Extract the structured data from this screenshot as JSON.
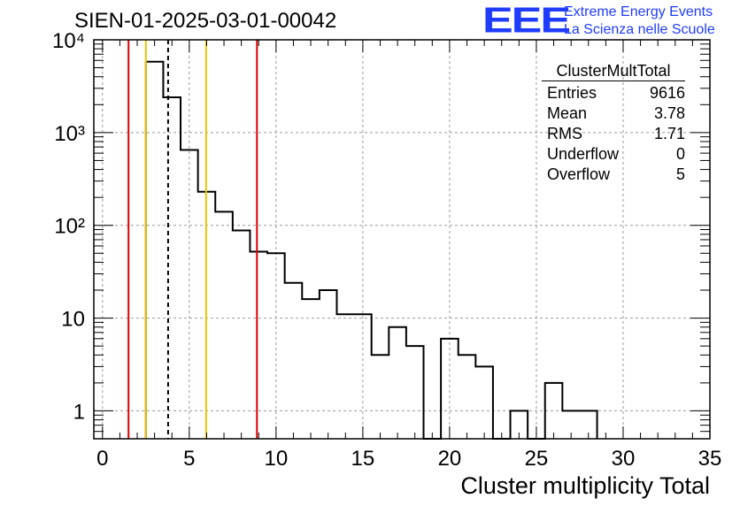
{
  "title": "SIEN-01-2025-03-01-00042",
  "logo": {
    "mark": "EEE",
    "line1": "Extreme Energy Events",
    "line2": "La Scienza nelle Scuole",
    "color": "#1f3cff"
  },
  "stats": {
    "name": "ClusterMultTotal",
    "rows": [
      {
        "label": "Entries",
        "value": "9616"
      },
      {
        "label": "Mean",
        "value": "3.78"
      },
      {
        "label": "RMS",
        "value": "1.71"
      },
      {
        "label": "Underflow",
        "value": "0"
      },
      {
        "label": "Overflow",
        "value": "5"
      }
    ]
  },
  "chart_data": {
    "type": "histogram",
    "title": "SIEN-01-2025-03-01-00042",
    "xlabel": "Cluster multiplicity Total",
    "ylabel": "",
    "xlim": [
      -0.5,
      35
    ],
    "ylim": [
      0.5,
      10000
    ],
    "yscale": "log",
    "grid": true,
    "xticks": [
      0,
      5,
      10,
      15,
      20,
      25,
      30,
      35
    ],
    "yticks": [
      {
        "value": 1,
        "label": "1"
      },
      {
        "value": 10,
        "label": "10"
      },
      {
        "value": 100,
        "label": "10²"
      },
      {
        "value": 1000,
        "label": "10³"
      },
      {
        "value": 10000,
        "label": "10⁴"
      }
    ],
    "bin_width": 1,
    "bins": [
      {
        "lo": 2.5,
        "count": 5800
      },
      {
        "lo": 3.5,
        "count": 2400
      },
      {
        "lo": 4.5,
        "count": 650
      },
      {
        "lo": 5.5,
        "count": 230
      },
      {
        "lo": 6.5,
        "count": 140
      },
      {
        "lo": 7.5,
        "count": 88
      },
      {
        "lo": 8.5,
        "count": 52
      },
      {
        "lo": 9.5,
        "count": 50
      },
      {
        "lo": 10.5,
        "count": 24
      },
      {
        "lo": 11.5,
        "count": 16
      },
      {
        "lo": 12.5,
        "count": 20
      },
      {
        "lo": 13.5,
        "count": 11
      },
      {
        "lo": 14.5,
        "count": 11
      },
      {
        "lo": 15.5,
        "count": 4
      },
      {
        "lo": 16.5,
        "count": 8
      },
      {
        "lo": 17.5,
        "count": 5
      },
      {
        "lo": 18.5,
        "count": 0
      },
      {
        "lo": 19.5,
        "count": 6
      },
      {
        "lo": 20.5,
        "count": 4
      },
      {
        "lo": 21.5,
        "count": 3
      },
      {
        "lo": 22.5,
        "count": 0
      },
      {
        "lo": 23.5,
        "count": 1
      },
      {
        "lo": 24.5,
        "count": 0
      },
      {
        "lo": 25.5,
        "count": 2
      },
      {
        "lo": 26.5,
        "count": 1
      },
      {
        "lo": 27.5,
        "count": 1
      }
    ],
    "vlines": [
      {
        "x": 1.5,
        "color": "#dd0000",
        "style": "solid"
      },
      {
        "x": 2.5,
        "color": "#f2c200",
        "style": "solid"
      },
      {
        "x": 3.78,
        "color": "#000000",
        "style": "dashed"
      },
      {
        "x": 5.97,
        "color": "#f2c200",
        "style": "solid"
      },
      {
        "x": 8.9,
        "color": "#dd0000",
        "style": "solid"
      }
    ]
  }
}
